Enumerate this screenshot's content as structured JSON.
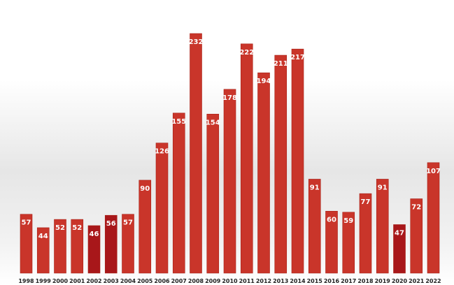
{
  "chart_data": {
    "type": "bar",
    "title": "",
    "xlabel": "",
    "ylabel": "",
    "categories": [
      "1998",
      "1999",
      "2000",
      "2001",
      "2002",
      "2003",
      "2004",
      "2005",
      "2006",
      "2007",
      "2008",
      "2009",
      "2010",
      "2011",
      "2012",
      "2013",
      "2014",
      "2015",
      "2016",
      "2017",
      "2018",
      "2019",
      "2020",
      "2021",
      "2022"
    ],
    "values": [
      57,
      44,
      52,
      52,
      46,
      56,
      57,
      90,
      126,
      155,
      232,
      154,
      178,
      222,
      194,
      211,
      217,
      91,
      60,
      59,
      77,
      91,
      47,
      72,
      107
    ],
    "value_labels": [
      "57",
      "44",
      "52",
      "52",
      "46",
      "56",
      "57",
      "90",
      "126",
      "155",
      "232",
      "154",
      "178",
      "222",
      "194",
      "211",
      "217",
      "91",
      "60",
      "59",
      "77",
      "91",
      "47",
      "72",
      "107"
    ],
    "ylim": [
      0,
      232
    ],
    "grid": false,
    "legend": "none",
    "colors": {
      "bar": "#c9352a",
      "bar_edge": "#a82218",
      "bar_highlight": "#a8171a",
      "label_text": "#ffffff",
      "tick_text": "#222222",
      "background_gradient": "#e6e6e6"
    },
    "highlighted_categories": [
      "2002",
      "2003",
      "2020"
    ]
  }
}
